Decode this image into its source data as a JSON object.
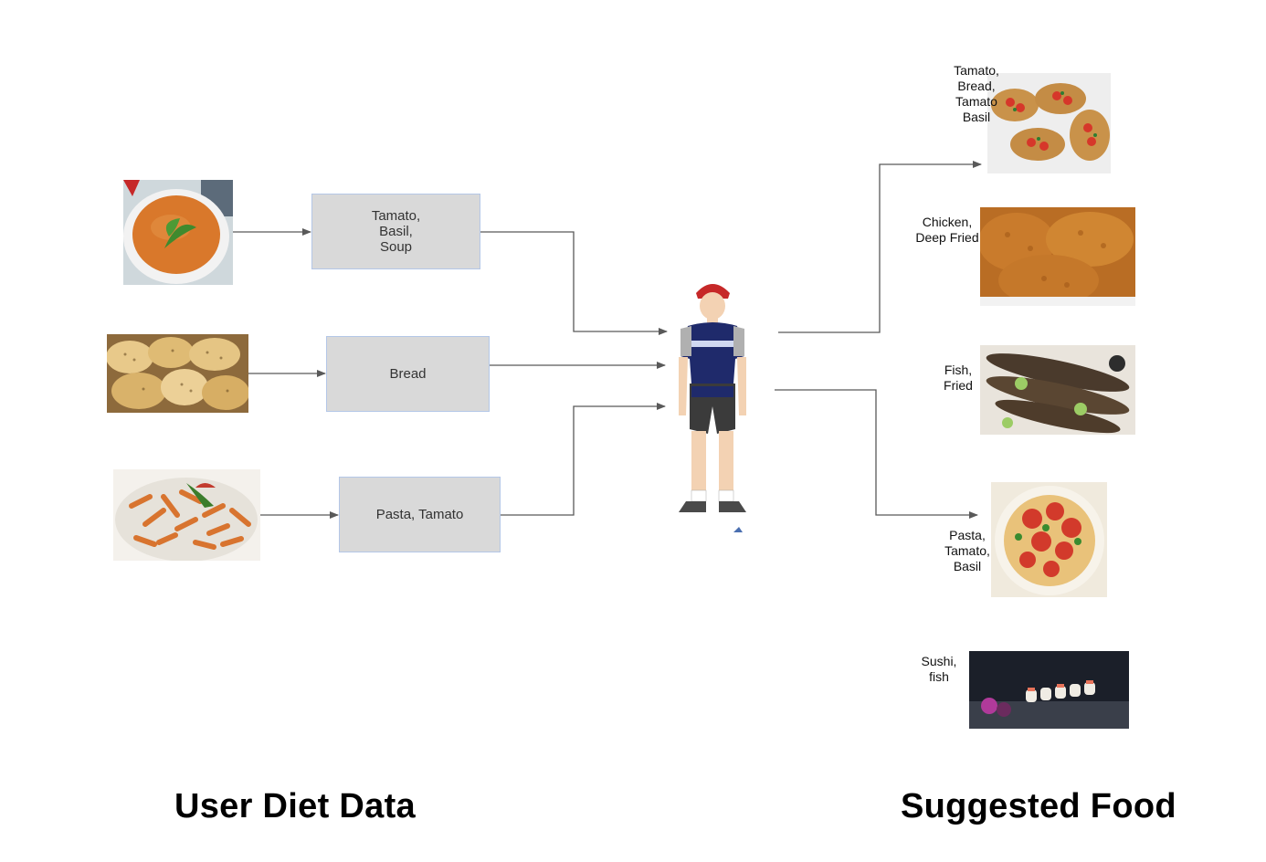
{
  "footer": {
    "left_title": "User Diet Data",
    "right_title": "Suggested Food"
  },
  "diet_inputs": [
    {
      "label": "Tamato,\nBasil,\nSoup",
      "image_icon": "tomato-soup-image"
    },
    {
      "label": "Bread",
      "image_icon": "bread-image"
    },
    {
      "label": "Pasta, Tamato",
      "image_icon": "penne-pasta-image"
    }
  ],
  "suggestions": [
    {
      "label": "Tamato,\nBread,\nTamato\nBasil",
      "image_icon": "bruschetta-image"
    },
    {
      "label": "Chicken,\nDeep Fried",
      "image_icon": "fried-chicken-image"
    },
    {
      "label": "Fish,\nFried",
      "image_icon": "fried-fish-image"
    },
    {
      "label": "Pasta,\nTamato,\nBasil",
      "image_icon": "tomato-spaghetti-image"
    },
    {
      "label": "Sushi,\nfish",
      "image_icon": "sushi-image"
    }
  ],
  "colors": {
    "box_fill": "#d9d9d9",
    "box_border": "#b4c7e7",
    "connector": "#595959",
    "jersey": "#1f2a6b"
  }
}
